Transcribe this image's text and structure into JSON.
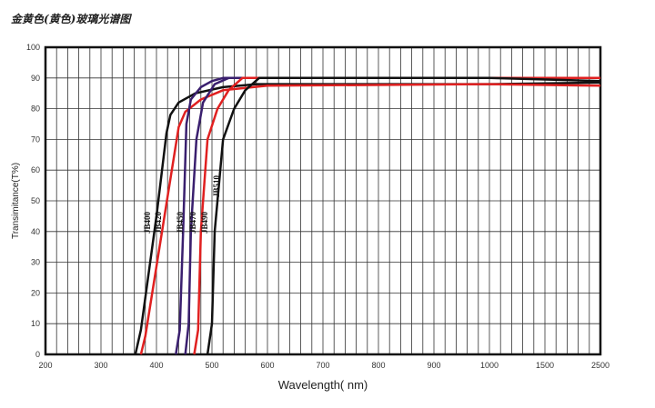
{
  "chart_data": {
    "type": "line",
    "title": "金黄色(黄色)玻璃光谱图",
    "xlabel": "Wavelength( nm)",
    "ylabel": "Transimitance(T%)",
    "xticks": [
      "200",
      "300",
      "400",
      "500",
      "600",
      "700",
      "800",
      "900",
      "1000",
      "1500",
      "2500"
    ],
    "xtick_values": [
      200,
      300,
      400,
      500,
      600,
      700,
      800,
      900,
      1000,
      1500,
      2500
    ],
    "yticks": [
      "0",
      "10",
      "20",
      "30",
      "40",
      "50",
      "60",
      "70",
      "80",
      "90",
      "100"
    ],
    "ylim": [
      0,
      100
    ],
    "grid": true,
    "series": [
      {
        "name": "JB400",
        "color": "#111111",
        "points": [
          [
            362,
            0
          ],
          [
            372,
            8
          ],
          [
            400,
            45
          ],
          [
            418,
            72
          ],
          [
            425,
            78
          ],
          [
            440,
            82
          ],
          [
            470,
            85
          ],
          [
            520,
            87
          ],
          [
            580,
            88
          ],
          [
            1000,
            88
          ],
          [
            2500,
            88.5
          ]
        ]
      },
      {
        "name": "JB420",
        "color": "#e02020",
        "points": [
          [
            372,
            0
          ],
          [
            380,
            6
          ],
          [
            410,
            40
          ],
          [
            440,
            74
          ],
          [
            452,
            79
          ],
          [
            480,
            83
          ],
          [
            520,
            86
          ],
          [
            600,
            87.5
          ],
          [
            1000,
            88
          ],
          [
            2500,
            87.5
          ]
        ]
      },
      {
        "name": "JB450",
        "color": "#3a1f6e",
        "points": [
          [
            435,
            0
          ],
          [
            442,
            8
          ],
          [
            448,
            40
          ],
          [
            454,
            75
          ],
          [
            462,
            83
          ],
          [
            480,
            87
          ],
          [
            500,
            89
          ],
          [
            520,
            90
          ],
          [
            1000,
            90
          ],
          [
            2500,
            90
          ]
        ]
      },
      {
        "name": "JB470",
        "color": "#3a1f6e",
        "points": [
          [
            452,
            0
          ],
          [
            458,
            10
          ],
          [
            462,
            40
          ],
          [
            472,
            70
          ],
          [
            484,
            82
          ],
          [
            505,
            88
          ],
          [
            530,
            90
          ],
          [
            1000,
            90
          ],
          [
            2500,
            90
          ]
        ]
      },
      {
        "name": "JB490",
        "color": "#e02020",
        "points": [
          [
            468,
            0
          ],
          [
            475,
            8
          ],
          [
            480,
            40
          ],
          [
            492,
            70
          ],
          [
            510,
            80
          ],
          [
            530,
            86
          ],
          [
            555,
            90
          ],
          [
            1000,
            90
          ],
          [
            2500,
            90
          ]
        ]
      },
      {
        "name": "JB510",
        "color": "#111111",
        "points": [
          [
            492,
            0
          ],
          [
            500,
            10
          ],
          [
            505,
            40
          ],
          [
            520,
            70
          ],
          [
            540,
            80
          ],
          [
            560,
            86
          ],
          [
            585,
            90
          ],
          [
            1000,
            90
          ],
          [
            2500,
            89
          ]
        ]
      }
    ],
    "annotations": [
      "JB400",
      "JB420",
      "JB450",
      "JB470",
      "JB490",
      "JB510"
    ]
  }
}
